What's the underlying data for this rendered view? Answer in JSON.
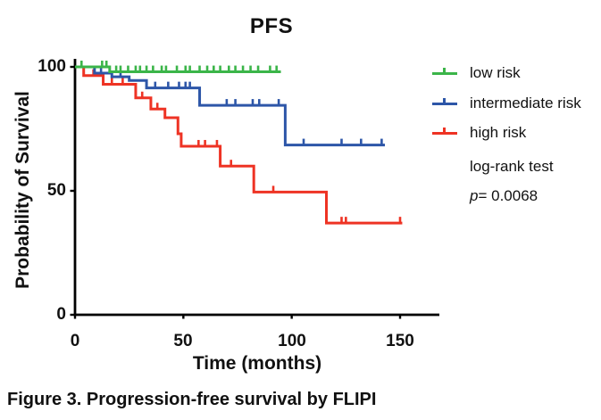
{
  "figure": {
    "caption": "Figure 3. Progression-free survival by FLIPI"
  },
  "chart_data": {
    "type": "line",
    "subtype": "kaplan-meier-step",
    "title": "PFS",
    "xlabel": "Time (months)",
    "ylabel": "Probability of Survival",
    "xlim": [
      0,
      168
    ],
    "ylim": [
      0,
      100
    ],
    "x_ticks": [
      0,
      50,
      100,
      150
    ],
    "y_ticks": [
      0,
      50,
      100
    ],
    "x_tick_labels": [
      "0",
      "50",
      "100",
      "150"
    ],
    "y_tick_labels": [
      "100",
      "50",
      "0"
    ],
    "grid": false,
    "legend_position": "right",
    "stats_note": "log-rank test",
    "p_symbol": "p",
    "p_value_text": "= 0.0068",
    "p_value": 0.0068,
    "series": [
      {
        "name": "high risk",
        "color": "#ee3324",
        "steps": [
          [
            0,
            100
          ],
          [
            4,
            100
          ],
          [
            4,
            96.5
          ],
          [
            13,
            96.5
          ],
          [
            13,
            93
          ],
          [
            28,
            93
          ],
          [
            28,
            87.5
          ],
          [
            35,
            87.5
          ],
          [
            35,
            83
          ],
          [
            41.5,
            83
          ],
          [
            41.5,
            79.5
          ],
          [
            47.5,
            79.5
          ],
          [
            47.5,
            73
          ],
          [
            49,
            73
          ],
          [
            49,
            68
          ],
          [
            67,
            68
          ],
          [
            67,
            60
          ],
          [
            82.5,
            60
          ],
          [
            82.5,
            49.5
          ],
          [
            116,
            49.5
          ],
          [
            116,
            37
          ],
          [
            151,
            37
          ]
        ],
        "censor_ticks": [
          8.5,
          17,
          22,
          31,
          38,
          57,
          60,
          65.5,
          72,
          91.5,
          123,
          125,
          150
        ]
      },
      {
        "name": "intermediate risk",
        "color": "#2d56a8",
        "steps": [
          [
            0,
            100
          ],
          [
            9,
            100
          ],
          [
            9,
            97.5
          ],
          [
            17,
            97.5
          ],
          [
            17,
            96
          ],
          [
            25,
            96
          ],
          [
            25,
            94.5
          ],
          [
            33,
            94.5
          ],
          [
            33,
            91.5
          ],
          [
            57.5,
            91.5
          ],
          [
            57.5,
            84.5
          ],
          [
            97,
            84.5
          ],
          [
            97,
            68.5
          ],
          [
            143,
            68.5
          ]
        ],
        "censor_ticks": [
          12,
          21,
          37,
          43,
          48,
          51,
          53,
          70,
          74,
          82,
          85,
          94,
          105.5,
          123,
          132,
          141.5
        ]
      },
      {
        "name": "low risk",
        "color": "#3bb549",
        "steps": [
          [
            0,
            100
          ],
          [
            16,
            100
          ],
          [
            16,
            98
          ],
          [
            95,
            98
          ]
        ],
        "censor_ticks": [
          3,
          12.5,
          14.5,
          19,
          21,
          24.5,
          28,
          30,
          33,
          36,
          40,
          42,
          47,
          51,
          53,
          57.5,
          61,
          64,
          67,
          71,
          74,
          77.5,
          81,
          84.5,
          90,
          93
        ]
      }
    ],
    "legend_order": [
      "low risk",
      "intermediate risk",
      "high risk"
    ]
  }
}
